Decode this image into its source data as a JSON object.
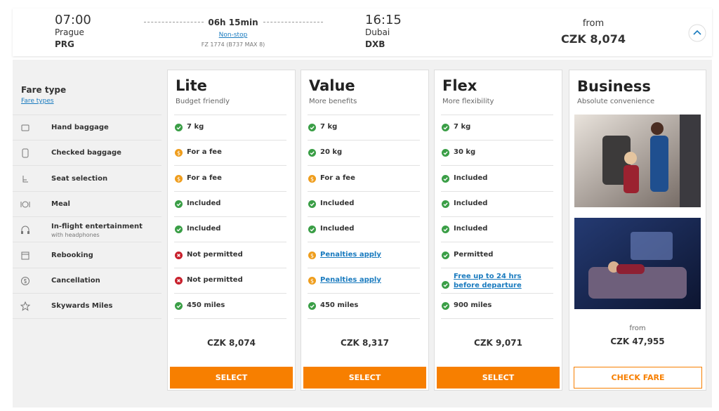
{
  "flight": {
    "departure": {
      "time": "07:00",
      "city": "Prague",
      "code": "PRG"
    },
    "duration": "06h 15min",
    "stops": "Non-stop",
    "flight_info": "FZ 1774 (B737 MAX 8)",
    "arrival": {
      "time": "16:15",
      "city": "Dubai",
      "code": "DXB"
    },
    "price_prefix": "from",
    "price": "CZK 8,074"
  },
  "features": {
    "title": "Fare type",
    "link": "Fare types",
    "rows": [
      {
        "label": "Hand baggage"
      },
      {
        "label": "Checked baggage"
      },
      {
        "label": "Seat selection"
      },
      {
        "label": "Meal"
      },
      {
        "label": "In-flight entertainment",
        "note": "with headphones"
      },
      {
        "label": "Rebooking"
      },
      {
        "label": "Cancellation"
      },
      {
        "label": "Skywards Miles"
      }
    ]
  },
  "fares": [
    {
      "name": "Lite",
      "subtitle": "Budget friendly",
      "items": [
        {
          "status": "included",
          "text": "7 kg"
        },
        {
          "status": "fee",
          "text": "For a fee"
        },
        {
          "status": "fee",
          "text": "For a fee"
        },
        {
          "status": "included",
          "text": "Included"
        },
        {
          "status": "included",
          "text": "Included"
        },
        {
          "status": "not-permitted",
          "text": "Not permitted"
        },
        {
          "status": "not-permitted",
          "text": "Not permitted"
        },
        {
          "status": "included",
          "text": "450 miles"
        }
      ],
      "price": "CZK 8,074",
      "button": "SELECT"
    },
    {
      "name": "Value",
      "subtitle": "More benefits",
      "items": [
        {
          "status": "included",
          "text": "7 kg"
        },
        {
          "status": "included",
          "text": "20 kg"
        },
        {
          "status": "fee",
          "text": "For a fee"
        },
        {
          "status": "included",
          "text": "Included"
        },
        {
          "status": "included",
          "text": "Included"
        },
        {
          "status": "fee",
          "text": "Penalties apply",
          "link": true
        },
        {
          "status": "fee",
          "text": "Penalties apply",
          "link": true
        },
        {
          "status": "included",
          "text": "450 miles"
        }
      ],
      "price": "CZK 8,317",
      "button": "SELECT"
    },
    {
      "name": "Flex",
      "subtitle": "More flexibility",
      "items": [
        {
          "status": "included",
          "text": "7 kg"
        },
        {
          "status": "included",
          "text": "30 kg"
        },
        {
          "status": "included",
          "text": "Included"
        },
        {
          "status": "included",
          "text": "Included"
        },
        {
          "status": "included",
          "text": "Included"
        },
        {
          "status": "included",
          "text": "Permitted"
        },
        {
          "status": "included",
          "text": "Free up to 24 hrs before departure",
          "link": true
        },
        {
          "status": "included",
          "text": "900 miles"
        }
      ],
      "price": "CZK 9,071",
      "button": "SELECT"
    }
  ],
  "business": {
    "name": "Business",
    "subtitle": "Absolute convenience",
    "price_prefix": "from",
    "price": "CZK 47,955",
    "button": "CHECK FARE"
  }
}
